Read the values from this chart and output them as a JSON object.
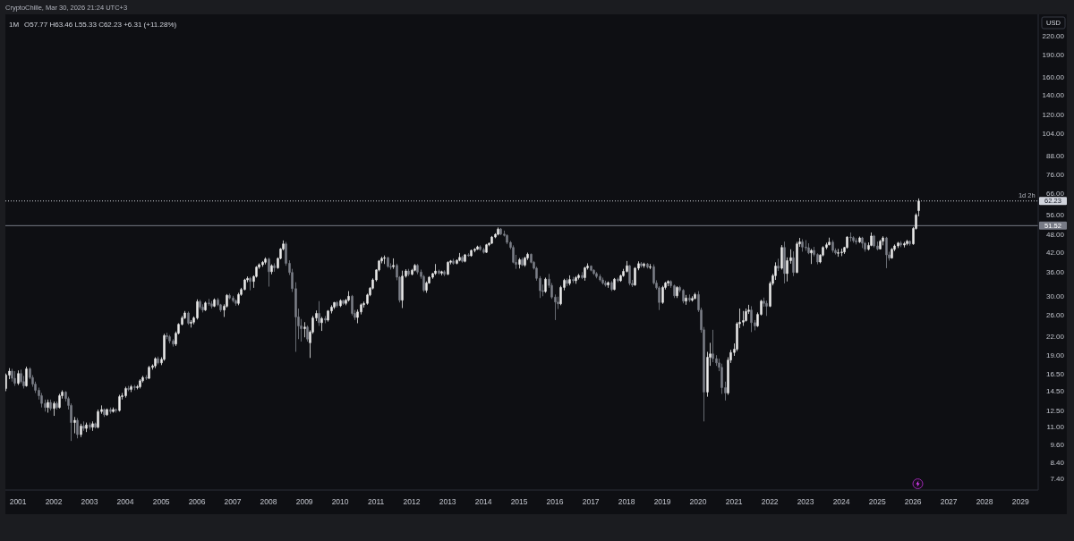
{
  "chart_data": {
    "type": "candlestick",
    "title": "1M",
    "ylabel": "USD",
    "log": true,
    "annotations": [
      "CryptoChille, Mar 30, 2026 21:24 UTC+3",
      "O57.77 H63.46 L55.33 C62.23 +6.31 (+11.28%)",
      {
        "text": "1d 2h",
        "x": "2029-06",
        "y": 62.23
      }
    ],
    "xlim": [
      "2000-08-25",
      "2029-07"
    ],
    "ylim": [
      6.8,
      260
    ],
    "xticks": [
      "2001",
      "2002",
      "2003",
      "2004",
      "2005",
      "2006",
      "2007",
      "2008",
      "2009",
      "2010",
      "2011",
      "2012",
      "2013",
      "2014",
      "2015",
      "2016",
      "2017",
      "2018",
      "2019",
      "2020",
      "2021",
      "2022",
      "2023",
      "2024",
      "2025",
      "2026",
      "2027",
      "2028",
      "2029"
    ],
    "yticks": [
      {
        "value": 220,
        "label": "220.00"
      },
      {
        "value": 190,
        "label": "190.00"
      },
      {
        "value": 160,
        "label": "160.00"
      },
      {
        "value": 140,
        "label": "140.00"
      },
      {
        "value": 120,
        "label": "120.00"
      },
      {
        "value": 104,
        "label": "104.00"
      },
      {
        "value": 88,
        "label": "88.00"
      },
      {
        "value": 76,
        "label": "76.00"
      },
      {
        "value": 66,
        "label": "66.00"
      },
      {
        "value": 56,
        "label": "56.00"
      },
      {
        "value": 48,
        "label": "48.00"
      },
      {
        "value": 42,
        "label": "42.00"
      },
      {
        "value": 36,
        "label": "36.00"
      },
      {
        "value": 30,
        "label": "30.00"
      },
      {
        "value": 26,
        "label": "26.00"
      },
      {
        "value": 22,
        "label": "22.00"
      },
      {
        "value": 19,
        "label": "19.00"
      },
      {
        "value": 16.5,
        "label": "16.50"
      },
      {
        "value": 14.5,
        "label": "14.50"
      },
      {
        "value": 12.5,
        "label": "12.50"
      },
      {
        "value": 11,
        "label": "11.00"
      },
      {
        "value": 9.6,
        "label": "9.60"
      },
      {
        "value": 8.4,
        "label": "8.40"
      },
      {
        "value": 7.4,
        "label": "7.40"
      }
    ],
    "ref_lines": [
      {
        "axis": "y",
        "value": 62.23,
        "label": "62.23",
        "color": "#d1d4dc",
        "line_style": "dotted"
      },
      {
        "axis": "y",
        "value": 51.52,
        "label": "51.52",
        "color": "#787b86",
        "line_style": "solid"
      }
    ],
    "x": [
      "2000-09",
      "2000-10",
      "2000-11",
      "2000-12",
      "2001-01",
      "2001-02",
      "2001-03",
      "2001-04",
      "2001-05",
      "2001-06",
      "2001-07",
      "2001-08",
      "2001-09",
      "2001-10",
      "2001-11",
      "2001-12",
      "2002-01",
      "2002-02",
      "2002-03",
      "2002-04",
      "2002-05",
      "2002-06",
      "2002-07",
      "2002-08",
      "2002-09",
      "2002-10",
      "2002-11",
      "2002-12",
      "2003-01",
      "2003-02",
      "2003-03",
      "2003-04",
      "2003-05",
      "2003-06",
      "2003-07",
      "2003-08",
      "2003-09",
      "2003-10",
      "2003-11",
      "2003-12",
      "2004-01",
      "2004-02",
      "2004-03",
      "2004-04",
      "2004-05",
      "2004-06",
      "2004-07",
      "2004-08",
      "2004-09",
      "2004-10",
      "2004-11",
      "2004-12",
      "2005-01",
      "2005-02",
      "2005-03",
      "2005-04",
      "2005-05",
      "2005-06",
      "2005-07",
      "2005-08",
      "2005-09",
      "2005-10",
      "2005-11",
      "2005-12",
      "2006-01",
      "2006-02",
      "2006-03",
      "2006-04",
      "2006-05",
      "2006-06",
      "2006-07",
      "2006-08",
      "2006-09",
      "2006-10",
      "2006-11",
      "2006-12",
      "2007-01",
      "2007-02",
      "2007-03",
      "2007-04",
      "2007-05",
      "2007-06",
      "2007-07",
      "2007-08",
      "2007-09",
      "2007-10",
      "2007-11",
      "2007-12",
      "2008-01",
      "2008-02",
      "2008-03",
      "2008-04",
      "2008-05",
      "2008-06",
      "2008-07",
      "2008-08",
      "2008-09",
      "2008-10",
      "2008-11",
      "2008-12",
      "2009-01",
      "2009-02",
      "2009-03",
      "2009-04",
      "2009-05",
      "2009-06",
      "2009-07",
      "2009-08",
      "2009-09",
      "2009-10",
      "2009-11",
      "2009-12",
      "2010-01",
      "2010-02",
      "2010-03",
      "2010-04",
      "2010-05",
      "2010-06",
      "2010-07",
      "2010-08",
      "2010-09",
      "2010-10",
      "2010-11",
      "2010-12",
      "2011-01",
      "2011-02",
      "2011-03",
      "2011-04",
      "2011-05",
      "2011-06",
      "2011-07",
      "2011-08",
      "2011-09",
      "2011-10",
      "2011-11",
      "2011-12",
      "2012-01",
      "2012-02",
      "2012-03",
      "2012-04",
      "2012-05",
      "2012-06",
      "2012-07",
      "2012-08",
      "2012-09",
      "2012-10",
      "2012-11",
      "2012-12",
      "2013-01",
      "2013-02",
      "2013-03",
      "2013-04",
      "2013-05",
      "2013-06",
      "2013-07",
      "2013-08",
      "2013-09",
      "2013-10",
      "2013-11",
      "2013-12",
      "2014-01",
      "2014-02",
      "2014-03",
      "2014-04",
      "2014-05",
      "2014-06",
      "2014-07",
      "2014-08",
      "2014-09",
      "2014-10",
      "2014-11",
      "2014-12",
      "2015-01",
      "2015-02",
      "2015-03",
      "2015-04",
      "2015-05",
      "2015-06",
      "2015-07",
      "2015-08",
      "2015-09",
      "2015-10",
      "2015-11",
      "2015-12",
      "2016-01",
      "2016-02",
      "2016-03",
      "2016-04",
      "2016-05",
      "2016-06",
      "2016-07",
      "2016-08",
      "2016-09",
      "2016-10",
      "2016-11",
      "2016-12",
      "2017-01",
      "2017-02",
      "2017-03",
      "2017-04",
      "2017-05",
      "2017-06",
      "2017-07",
      "2017-08",
      "2017-09",
      "2017-10",
      "2017-11",
      "2017-12",
      "2018-01",
      "2018-02",
      "2018-03",
      "2018-04",
      "2018-05",
      "2018-06",
      "2018-07",
      "2018-08",
      "2018-09",
      "2018-10",
      "2018-11",
      "2018-12",
      "2019-01",
      "2019-02",
      "2019-03",
      "2019-04",
      "2019-05",
      "2019-06",
      "2019-07",
      "2019-08",
      "2019-09",
      "2019-10",
      "2019-11",
      "2019-12",
      "2020-01",
      "2020-02",
      "2020-03",
      "2020-04",
      "2020-05",
      "2020-06",
      "2020-07",
      "2020-08",
      "2020-09",
      "2020-10",
      "2020-11",
      "2020-12",
      "2021-01",
      "2021-02",
      "2021-03",
      "2021-04",
      "2021-05",
      "2021-06",
      "2021-07",
      "2021-08",
      "2021-09",
      "2021-10",
      "2021-11",
      "2021-12",
      "2022-01",
      "2022-02",
      "2022-03",
      "2022-04",
      "2022-05",
      "2022-06",
      "2022-07",
      "2022-08",
      "2022-09",
      "2022-10",
      "2022-11",
      "2022-12",
      "2023-01",
      "2023-02",
      "2023-03",
      "2023-04",
      "2023-05",
      "2023-06",
      "2023-07",
      "2023-08",
      "2023-09",
      "2023-10",
      "2023-11",
      "2023-12",
      "2024-01",
      "2024-02",
      "2024-03",
      "2024-04",
      "2024-05",
      "2024-06",
      "2024-07",
      "2024-08",
      "2024-09",
      "2024-10",
      "2024-11",
      "2024-12",
      "2025-01",
      "2025-02",
      "2025-03",
      "2025-04",
      "2025-05",
      "2025-06",
      "2025-07",
      "2025-08",
      "2025-09",
      "2025-10",
      "2025-11",
      "2025-12",
      "2026-01",
      "2026-02",
      "2026-03"
    ],
    "ohlc": [
      [
        14.8,
        16.6,
        14.5,
        16.4
      ],
      [
        16.4,
        17.3,
        15.9,
        16.9
      ],
      [
        16.9,
        17.2,
        15.6,
        16.0
      ],
      [
        16.0,
        16.9,
        15.1,
        15.4
      ],
      [
        15.4,
        17.0,
        15.2,
        16.6
      ],
      [
        16.6,
        17.1,
        15.4,
        15.6
      ],
      [
        15.6,
        16.3,
        14.8,
        15.1
      ],
      [
        15.1,
        17.5,
        15.0,
        17.2
      ],
      [
        17.2,
        17.4,
        15.9,
        16.1
      ],
      [
        16.1,
        16.4,
        15.0,
        15.3
      ],
      [
        15.3,
        15.6,
        14.3,
        14.6
      ],
      [
        14.6,
        14.9,
        13.6,
        14.0
      ],
      [
        14.0,
        14.3,
        12.8,
        13.2
      ],
      [
        13.2,
        13.6,
        12.4,
        12.8
      ],
      [
        12.8,
        13.6,
        12.3,
        13.3
      ],
      [
        13.3,
        13.6,
        12.5,
        12.7
      ],
      [
        12.7,
        13.4,
        12.0,
        13.2
      ],
      [
        13.2,
        13.4,
        12.6,
        12.8
      ],
      [
        12.8,
        14.2,
        12.7,
        14.0
      ],
      [
        14.0,
        14.6,
        13.7,
        14.4
      ],
      [
        14.4,
        14.5,
        13.4,
        13.7
      ],
      [
        13.7,
        13.9,
        12.6,
        13.0
      ],
      [
        13.0,
        13.2,
        9.9,
        11.4
      ],
      [
        11.4,
        11.9,
        10.5,
        11.6
      ],
      [
        11.6,
        11.8,
        10.1,
        10.4
      ],
      [
        10.4,
        11.3,
        10.2,
        11.1
      ],
      [
        11.1,
        11.5,
        10.7,
        10.9
      ],
      [
        10.9,
        11.4,
        10.6,
        11.2
      ],
      [
        11.2,
        11.4,
        10.8,
        11.0
      ],
      [
        11.0,
        11.5,
        10.7,
        11.3
      ],
      [
        11.3,
        11.4,
        10.9,
        11.0
      ],
      [
        11.0,
        12.6,
        10.9,
        12.4
      ],
      [
        12.4,
        13.0,
        12.2,
        12.6
      ],
      [
        12.6,
        12.7,
        11.9,
        12.1
      ],
      [
        12.1,
        12.7,
        12.0,
        12.6
      ],
      [
        12.6,
        12.8,
        12.2,
        12.4
      ],
      [
        12.4,
        12.8,
        12.3,
        12.6
      ],
      [
        12.6,
        12.7,
        12.3,
        12.5
      ],
      [
        12.5,
        14.1,
        12.4,
        13.9
      ],
      [
        13.9,
        14.3,
        13.6,
        14.0
      ],
      [
        14.0,
        15.0,
        13.8,
        14.8
      ],
      [
        14.8,
        15.1,
        14.5,
        14.7
      ],
      [
        14.7,
        15.2,
        14.4,
        15.0
      ],
      [
        15.0,
        15.2,
        14.6,
        14.9
      ],
      [
        14.9,
        15.2,
        14.7,
        15.0
      ],
      [
        15.0,
        15.9,
        14.8,
        15.7
      ],
      [
        15.7,
        16.3,
        15.5,
        16.1
      ],
      [
        16.1,
        16.4,
        15.8,
        16.0
      ],
      [
        16.0,
        17.6,
        15.9,
        17.4
      ],
      [
        17.4,
        17.8,
        17.1,
        17.6
      ],
      [
        17.6,
        18.8,
        17.3,
        18.6
      ],
      [
        18.6,
        18.9,
        17.8,
        18.0
      ],
      [
        18.0,
        18.8,
        17.7,
        18.5
      ],
      [
        18.5,
        22.5,
        18.3,
        22.2
      ],
      [
        22.2,
        22.7,
        21.6,
        22.0
      ],
      [
        22.0,
        22.3,
        20.9,
        21.3
      ],
      [
        21.3,
        21.6,
        20.4,
        20.8
      ],
      [
        20.8,
        22.9,
        20.5,
        22.6
      ],
      [
        22.6,
        24.4,
        22.4,
        24.2
      ],
      [
        24.2,
        25.8,
        24.0,
        25.4
      ],
      [
        25.4,
        26.8,
        25.2,
        26.4
      ],
      [
        26.4,
        26.7,
        24.1,
        24.4
      ],
      [
        24.4,
        25.0,
        23.6,
        24.6
      ],
      [
        24.6,
        25.7,
        24.2,
        25.4
      ],
      [
        25.4,
        29.3,
        25.1,
        28.8
      ],
      [
        28.8,
        29.2,
        27.1,
        27.6
      ],
      [
        27.6,
        28.2,
        26.5,
        27.0
      ],
      [
        27.0,
        28.8,
        26.8,
        28.5
      ],
      [
        28.5,
        29.4,
        27.9,
        28.3
      ],
      [
        28.3,
        28.9,
        27.3,
        27.8
      ],
      [
        27.8,
        29.5,
        27.6,
        29.2
      ],
      [
        29.2,
        29.6,
        27.8,
        28.1
      ],
      [
        28.1,
        28.3,
        26.6,
        27.0
      ],
      [
        27.0,
        28.2,
        25.6,
        27.8
      ],
      [
        27.8,
        30.5,
        27.5,
        30.2
      ],
      [
        30.2,
        30.6,
        29.3,
        29.6
      ],
      [
        29.6,
        30.1,
        28.6,
        29.0
      ],
      [
        29.0,
        29.3,
        27.9,
        28.4
      ],
      [
        28.4,
        30.8,
        28.0,
        30.4
      ],
      [
        30.4,
        32.0,
        30.1,
        31.6
      ],
      [
        31.6,
        34.3,
        31.4,
        34.0
      ],
      [
        34.0,
        34.9,
        33.4,
        34.4
      ],
      [
        34.4,
        34.8,
        31.4,
        33.6
      ],
      [
        33.6,
        35.2,
        32.0,
        34.9
      ],
      [
        34.9,
        37.8,
        34.6,
        37.5
      ],
      [
        37.5,
        38.6,
        37.0,
        38.2
      ],
      [
        38.2,
        39.3,
        37.6,
        38.9
      ],
      [
        38.9,
        40.4,
        38.3,
        39.9
      ],
      [
        39.9,
        40.3,
        32.3,
        36.2
      ],
      [
        36.2,
        38.3,
        35.5,
        37.9
      ],
      [
        37.9,
        38.6,
        36.2,
        37.3
      ],
      [
        37.3,
        40.4,
        37.0,
        40.1
      ],
      [
        40.1,
        43.4,
        39.8,
        43.1
      ],
      [
        43.1,
        46.0,
        42.6,
        44.8
      ],
      [
        44.8,
        45.5,
        37.9,
        38.6
      ],
      [
        38.6,
        39.5,
        35.3,
        36.0
      ],
      [
        36.0,
        37.0,
        31.0,
        31.8
      ],
      [
        31.8,
        33.4,
        19.6,
        25.6
      ],
      [
        25.6,
        27.3,
        21.6,
        23.9
      ],
      [
        23.9,
        25.2,
        21.2,
        23.4
      ],
      [
        23.4,
        24.6,
        21.9,
        23.7
      ],
      [
        23.7,
        24.0,
        21.2,
        21.6
      ],
      [
        21.0,
        23.1,
        18.7,
        22.8
      ],
      [
        22.8,
        25.8,
        22.5,
        25.4
      ],
      [
        25.4,
        26.9,
        24.8,
        26.3
      ],
      [
        26.3,
        28.9,
        23.9,
        24.5
      ],
      [
        24.5,
        25.6,
        23.0,
        25.3
      ],
      [
        25.3,
        25.8,
        24.4,
        25.0
      ],
      [
        25.0,
        27.0,
        24.7,
        26.8
      ],
      [
        26.8,
        28.0,
        26.3,
        27.6
      ],
      [
        27.6,
        28.7,
        27.2,
        28.6
      ],
      [
        28.6,
        28.9,
        27.5,
        27.9
      ],
      [
        27.9,
        29.3,
        27.6,
        29.0
      ],
      [
        29.0,
        29.2,
        28.1,
        28.4
      ],
      [
        28.4,
        29.4,
        28.0,
        29.1
      ],
      [
        29.1,
        31.2,
        28.8,
        30.0
      ],
      [
        30.0,
        30.3,
        25.9,
        26.3
      ],
      [
        26.3,
        27.0,
        25.0,
        25.5
      ],
      [
        25.5,
        27.1,
        24.4,
        26.6
      ],
      [
        26.6,
        28.4,
        26.1,
        28.1
      ],
      [
        28.1,
        28.8,
        27.5,
        28.4
      ],
      [
        28.4,
        30.6,
        28.1,
        30.3
      ],
      [
        30.3,
        32.2,
        30.0,
        31.9
      ],
      [
        31.9,
        34.4,
        31.6,
        34.0
      ],
      [
        34.0,
        36.9,
        33.6,
        36.7
      ],
      [
        36.7,
        39.6,
        36.3,
        39.3
      ],
      [
        39.3,
        40.6,
        38.6,
        40.1
      ],
      [
        40.1,
        41.0,
        38.4,
        40.3
      ],
      [
        40.3,
        40.6,
        37.3,
        37.7
      ],
      [
        37.7,
        38.6,
        36.8,
        37.6
      ],
      [
        37.6,
        40.1,
        37.0,
        38.0
      ],
      [
        38.0,
        38.5,
        33.9,
        34.7
      ],
      [
        34.7,
        35.0,
        28.6,
        29.1
      ],
      [
        29.1,
        36.5,
        27.4,
        35.0
      ],
      [
        35.0,
        36.9,
        34.6,
        36.4
      ],
      [
        36.4,
        37.0,
        35.0,
        35.5
      ],
      [
        35.5,
        37.0,
        35.2,
        36.6
      ],
      [
        36.6,
        38.4,
        36.3,
        38.0
      ],
      [
        38.0,
        38.4,
        35.5,
        36.1
      ],
      [
        36.1,
        36.8,
        34.3,
        34.9
      ],
      [
        34.9,
        35.3,
        31.0,
        31.4
      ],
      [
        31.4,
        33.6,
        30.8,
        33.2
      ],
      [
        33.2,
        35.0,
        33.0,
        34.7
      ],
      [
        34.7,
        35.9,
        34.3,
        35.7
      ],
      [
        35.7,
        38.4,
        35.3,
        36.4
      ],
      [
        36.4,
        36.8,
        35.4,
        35.8
      ],
      [
        35.8,
        36.5,
        35.2,
        36.2
      ],
      [
        36.2,
        36.6,
        35.0,
        35.5
      ],
      [
        35.5,
        39.2,
        35.3,
        38.9
      ],
      [
        38.9,
        39.6,
        38.3,
        39.3
      ],
      [
        39.3,
        40.0,
        38.2,
        38.6
      ],
      [
        38.6,
        39.8,
        38.3,
        39.5
      ],
      [
        39.5,
        41.8,
        39.2,
        40.4
      ],
      [
        40.4,
        40.9,
        38.8,
        39.2
      ],
      [
        39.2,
        41.5,
        38.9,
        41.2
      ],
      [
        41.2,
        41.7,
        40.6,
        40.9
      ],
      [
        40.9,
        42.9,
        40.6,
        42.6
      ],
      [
        42.6,
        43.4,
        42.0,
        43.0
      ],
      [
        43.0,
        44.2,
        42.8,
        43.8
      ],
      [
        43.8,
        44.3,
        42.5,
        42.9
      ],
      [
        42.9,
        43.5,
        41.6,
        42.0
      ],
      [
        42.0,
        44.8,
        41.8,
        44.5
      ],
      [
        44.5,
        45.3,
        44.0,
        45.0
      ],
      [
        45.0,
        47.6,
        44.7,
        47.2
      ],
      [
        47.2,
        48.6,
        46.8,
        48.2
      ],
      [
        48.2,
        50.8,
        47.8,
        50.2
      ],
      [
        50.2,
        50.6,
        47.9,
        48.3
      ],
      [
        48.3,
        49.6,
        47.4,
        47.8
      ],
      [
        47.8,
        48.2,
        44.7,
        45.3
      ],
      [
        45.3,
        45.8,
        43.0,
        43.6
      ],
      [
        43.6,
        44.3,
        38.6,
        38.9
      ],
      [
        38.9,
        41.2,
        37.0,
        38.3
      ],
      [
        38.3,
        40.2,
        37.1,
        39.7
      ],
      [
        39.7,
        40.3,
        37.8,
        38.1
      ],
      [
        38.1,
        40.6,
        37.6,
        40.2
      ],
      [
        40.2,
        41.9,
        39.6,
        41.4
      ],
      [
        41.4,
        41.6,
        38.6,
        38.9
      ],
      [
        38.9,
        39.3,
        36.8,
        37.2
      ],
      [
        37.2,
        37.6,
        33.8,
        34.4
      ],
      [
        34.4,
        35.0,
        29.6,
        31.3
      ],
      [
        31.3,
        32.8,
        30.0,
        31.1
      ],
      [
        31.1,
        34.6,
        30.8,
        34.2
      ],
      [
        34.2,
        35.6,
        32.0,
        32.6
      ],
      [
        32.6,
        33.2,
        29.4,
        29.8
      ],
      [
        29.8,
        30.4,
        25.0,
        28.7
      ],
      [
        28.7,
        29.9,
        27.2,
        28.3
      ],
      [
        28.3,
        32.5,
        28.0,
        32.1
      ],
      [
        32.1,
        34.3,
        31.4,
        33.9
      ],
      [
        33.9,
        34.4,
        32.4,
        33.1
      ],
      [
        33.1,
        35.2,
        32.6,
        34.1
      ],
      [
        34.1,
        34.8,
        33.2,
        33.8
      ],
      [
        33.8,
        35.0,
        33.0,
        34.6
      ],
      [
        34.6,
        35.6,
        34.1,
        35.2
      ],
      [
        35.2,
        36.1,
        34.2,
        34.6
      ],
      [
        34.6,
        37.6,
        33.8,
        37.3
      ],
      [
        37.3,
        38.6,
        36.8,
        37.8
      ],
      [
        37.8,
        38.0,
        36.3,
        36.6
      ],
      [
        36.6,
        36.9,
        35.3,
        35.7
      ],
      [
        35.7,
        36.1,
        34.4,
        34.9
      ],
      [
        34.9,
        35.5,
        33.6,
        34.0
      ],
      [
        34.0,
        34.6,
        32.8,
        33.2
      ],
      [
        33.2,
        33.8,
        32.3,
        32.7
      ],
      [
        32.7,
        33.6,
        32.0,
        33.3
      ],
      [
        33.3,
        33.7,
        31.2,
        31.6
      ],
      [
        31.6,
        34.5,
        31.4,
        34.2
      ],
      [
        34.2,
        34.6,
        33.4,
        33.8
      ],
      [
        33.8,
        35.4,
        33.5,
        35.1
      ],
      [
        35.1,
        37.0,
        34.8,
        36.3
      ],
      [
        36.3,
        39.3,
        36.0,
        37.9
      ],
      [
        37.9,
        38.1,
        32.6,
        33.1
      ],
      [
        33.1,
        34.0,
        32.2,
        32.7
      ],
      [
        32.7,
        37.5,
        32.5,
        37.2
      ],
      [
        37.2,
        39.2,
        36.6,
        38.5
      ],
      [
        38.5,
        39.0,
        37.4,
        37.9
      ],
      [
        37.9,
        38.8,
        37.3,
        38.4
      ],
      [
        38.4,
        38.7,
        37.1,
        37.5
      ],
      [
        37.5,
        38.4,
        36.9,
        37.6
      ],
      [
        37.6,
        38.3,
        32.8,
        33.2
      ],
      [
        33.2,
        33.9,
        31.6,
        32.0
      ],
      [
        32.0,
        32.4,
        27.0,
        28.6
      ],
      [
        28.6,
        32.5,
        28.3,
        32.1
      ],
      [
        32.1,
        33.5,
        31.6,
        33.2
      ],
      [
        33.2,
        33.9,
        32.4,
        33.6
      ],
      [
        33.6,
        33.9,
        32.0,
        32.5
      ],
      [
        32.5,
        32.8,
        29.6,
        30.1
      ],
      [
        30.1,
        32.4,
        29.6,
        32.1
      ],
      [
        32.1,
        32.5,
        30.9,
        31.4
      ],
      [
        31.4,
        31.7,
        28.4,
        28.9
      ],
      [
        28.9,
        30.3,
        28.1,
        29.6
      ],
      [
        29.6,
        30.4,
        28.7,
        29.1
      ],
      [
        29.1,
        30.0,
        28.8,
        29.5
      ],
      [
        29.5,
        30.8,
        29.3,
        30.4
      ],
      [
        30.4,
        31.2,
        26.6,
        27.0
      ],
      [
        27.0,
        27.5,
        22.7,
        23.2
      ],
      [
        23.2,
        23.7,
        11.5,
        14.4
      ],
      [
        14.4,
        19.6,
        13.9,
        18.8
      ],
      [
        18.8,
        21.0,
        17.6,
        19.3
      ],
      [
        19.3,
        23.2,
        18.1,
        18.6
      ],
      [
        18.6,
        19.1,
        17.6,
        18.0
      ],
      [
        18.0,
        18.6,
        16.9,
        17.4
      ],
      [
        17.4,
        17.9,
        14.2,
        14.9
      ],
      [
        14.9,
        15.6,
        13.5,
        14.3
      ],
      [
        14.3,
        18.8,
        14.1,
        18.4
      ],
      [
        18.4,
        19.9,
        18.0,
        19.5
      ],
      [
        19.5,
        20.9,
        19.0,
        20.0
      ],
      [
        20.0,
        24.6,
        19.7,
        24.3
      ],
      [
        24.3,
        27.3,
        23.5,
        24.6
      ],
      [
        24.6,
        26.8,
        23.9,
        24.9
      ],
      [
        24.9,
        27.3,
        24.7,
        26.7
      ],
      [
        26.7,
        28.1,
        26.2,
        27.0
      ],
      [
        27.0,
        27.8,
        22.8,
        24.5
      ],
      [
        24.5,
        25.0,
        23.1,
        23.9
      ],
      [
        23.9,
        26.5,
        23.7,
        26.1
      ],
      [
        26.1,
        29.2,
        25.9,
        28.9
      ],
      [
        28.9,
        29.7,
        27.7,
        28.4
      ],
      [
        28.4,
        29.0,
        25.8,
        27.8
      ],
      [
        27.8,
        33.6,
        27.6,
        33.1
      ],
      [
        33.1,
        35.6,
        32.6,
        35.1
      ],
      [
        35.1,
        38.9,
        34.0,
        37.8
      ],
      [
        37.8,
        40.0,
        36.4,
        37.2
      ],
      [
        37.2,
        44.4,
        36.8,
        43.6
      ],
      [
        43.6,
        45.6,
        33.1,
        35.7
      ],
      [
        35.7,
        40.4,
        33.6,
        39.4
      ],
      [
        39.4,
        43.0,
        38.5,
        40.3
      ],
      [
        40.3,
        42.3,
        35.0,
        36.0
      ],
      [
        36.0,
        45.5,
        35.8,
        44.8
      ],
      [
        44.8,
        46.9,
        43.8,
        45.5
      ],
      [
        45.5,
        46.4,
        42.2,
        43.7
      ],
      [
        43.7,
        46.1,
        42.5,
        43.5
      ],
      [
        43.5,
        45.0,
        41.4,
        41.8
      ],
      [
        41.8,
        43.1,
        38.4,
        42.6
      ],
      [
        42.6,
        43.8,
        40.7,
        41.3
      ],
      [
        41.3,
        41.7,
        38.3,
        39.0
      ],
      [
        39.0,
        41.4,
        38.6,
        41.1
      ],
      [
        41.1,
        44.0,
        40.7,
        43.6
      ],
      [
        43.6,
        45.2,
        43.0,
        44.5
      ],
      [
        44.5,
        47.0,
        44.3,
        45.4
      ],
      [
        45.4,
        46.1,
        41.9,
        42.6
      ],
      [
        42.6,
        43.3,
        41.3,
        41.8
      ],
      [
        41.8,
        43.1,
        40.6,
        41.9
      ],
      [
        41.9,
        43.2,
        40.8,
        42.1
      ],
      [
        42.1,
        43.8,
        41.5,
        43.6
      ],
      [
        43.6,
        47.5,
        43.2,
        47.2
      ],
      [
        47.2,
        48.9,
        45.6,
        47.0
      ],
      [
        47.0,
        47.5,
        45.2,
        45.9
      ],
      [
        45.9,
        46.8,
        44.6,
        45.5
      ],
      [
        45.5,
        47.4,
        45.1,
        46.9
      ],
      [
        46.9,
        47.3,
        43.4,
        45.0
      ],
      [
        45.0,
        45.5,
        42.2,
        43.0
      ],
      [
        43.0,
        45.3,
        42.6,
        44.3
      ],
      [
        44.3,
        48.9,
        44.0,
        47.6
      ],
      [
        47.6,
        48.0,
        43.6,
        44.1
      ],
      [
        44.1,
        45.6,
        42.6,
        43.1
      ],
      [
        43.1,
        46.2,
        42.9,
        45.7
      ],
      [
        45.7,
        47.5,
        44.3,
        46.9
      ],
      [
        46.9,
        47.3,
        37.2,
        41.2
      ],
      [
        41.2,
        42.2,
        39.4,
        40.2
      ],
      [
        40.2,
        43.4,
        40.0,
        43.0
      ],
      [
        43.0,
        44.6,
        42.4,
        44.1
      ],
      [
        44.1,
        45.5,
        43.4,
        45.1
      ],
      [
        45.1,
        45.8,
        43.7,
        44.4
      ],
      [
        44.4,
        45.5,
        43.6,
        44.9
      ],
      [
        44.9,
        46.2,
        44.3,
        45.7
      ],
      [
        45.7,
        46.0,
        44.2,
        44.8
      ],
      [
        44.8,
        51.0,
        44.5,
        50.4
      ],
      [
        50.4,
        56.6,
        50.0,
        55.9
      ],
      [
        57.77,
        63.46,
        55.33,
        62.23
      ]
    ],
    "colors": [
      "#eeeeee",
      "#eeeeee",
      "#7e818a",
      "#7e818a",
      "#eeeeee",
      "#7e818a",
      "#7e818a",
      "#eeeeee",
      "#7e818a",
      "#7e818a",
      "#7e818a",
      "#7e818a",
      "#7e818a",
      "#7e818a",
      "#eeeeee",
      "#7e818a",
      "#eeeeee",
      "#7e818a",
      "#eeeeee",
      "#eeeeee",
      "#7e818a",
      "#7e818a",
      "#7e818a",
      "#eeeeee",
      "#7e818a",
      "#eeeeee",
      "#7e818a",
      "#eeeeee",
      "#7e818a",
      "#eeeeee",
      "#7e818a",
      "#eeeeee",
      "#eeeeee",
      "#7e818a",
      "#eeeeee",
      "#7e818a",
      "#eeeeee",
      "#7e818a",
      "#eeeeee",
      "#eeeeee",
      "#eeeeee",
      "#7e818a",
      "#eeeeee",
      "#7e818a",
      "#eeeeee",
      "#eeeeee",
      "#eeeeee",
      "#7e818a",
      "#eeeeee",
      "#eeeeee",
      "#eeeeee",
      "#7e818a",
      "#eeeeee",
      "#eeeeee",
      "#7e818a",
      "#7e818a",
      "#7e818a",
      "#eeeeee",
      "#eeeeee",
      "#eeeeee",
      "#eeeeee",
      "#7e818a",
      "#eeeeee",
      "#eeeeee",
      "#eeeeee",
      "#7e818a",
      "#7e818a",
      "#eeeeee",
      "#7e818a",
      "#7e818a",
      "#eeeeee",
      "#7e818a",
      "#7e818a",
      "#eeeeee",
      "#eeeeee",
      "#7e818a",
      "#7e818a",
      "#7e818a",
      "#eeeeee",
      "#eeeeee",
      "#eeeeee",
      "#eeeeee",
      "#7e818a",
      "#eeeeee",
      "#eeeeee",
      "#eeeeee",
      "#eeeeee",
      "#eeeeee",
      "#7e818a",
      "#eeeeee",
      "#7e818a",
      "#eeeeee",
      "#eeeeee",
      "#eeeeee",
      "#7e818a",
      "#7e818a",
      "#7e818a",
      "#7e818a",
      "#7e818a",
      "#7e818a",
      "#eeeeee",
      "#7e818a",
      "#eeeeee",
      "#eeeeee",
      "#eeeeee",
      "#7e818a",
      "#eeeeee",
      "#7e818a",
      "#eeeeee",
      "#eeeeee",
      "#eeeeee",
      "#7e818a",
      "#eeeeee",
      "#7e818a",
      "#eeeeee",
      "#eeeeee",
      "#7e818a",
      "#7e818a",
      "#eeeeee",
      "#eeeeee",
      "#eeeeee",
      "#eeeeee",
      "#eeeeee",
      "#eeeeee",
      "#eeeeee",
      "#eeeeee",
      "#eeeeee",
      "#eeeeee",
      "#7e818a",
      "#7e818a",
      "#eeeeee",
      "#7e818a",
      "#7e818a",
      "#eeeeee",
      "#eeeeee",
      "#7e818a",
      "#eeeeee",
      "#eeeeee",
      "#7e818a",
      "#7e818a",
      "#7e818a",
      "#eeeeee",
      "#eeeeee",
      "#eeeeee",
      "#eeeeee",
      "#7e818a",
      "#eeeeee",
      "#7e818a",
      "#eeeeee",
      "#eeeeee",
      "#7e818a",
      "#eeeeee",
      "#eeeeee",
      "#7e818a",
      "#eeeeee",
      "#7e818a",
      "#eeeeee",
      "#eeeeee",
      "#eeeeee",
      "#7e818a",
      "#7e818a",
      "#eeeeee",
      "#eeeeee",
      "#eeeeee",
      "#eeeeee",
      "#eeeeee",
      "#7e818a",
      "#7e818a",
      "#7e818a",
      "#7e818a",
      "#7e818a",
      "#7e818a",
      "#eeeeee",
      "#7e818a",
      "#eeeeee",
      "#eeeeee",
      "#7e818a",
      "#7e818a",
      "#7e818a",
      "#7e818a",
      "#7e818a",
      "#eeeeee",
      "#7e818a",
      "#7e818a",
      "#7e818a",
      "#7e818a",
      "#eeeeee",
      "#eeeeee",
      "#7e818a",
      "#eeeeee",
      "#7e818a",
      "#eeeeee",
      "#eeeeee",
      "#7e818a",
      "#eeeeee",
      "#eeeeee",
      "#7e818a",
      "#7e818a",
      "#7e818a",
      "#7e818a",
      "#7e818a",
      "#7e818a",
      "#eeeeee",
      "#7e818a",
      "#eeeeee",
      "#7e818a",
      "#eeeeee",
      "#eeeeee",
      "#eeeeee",
      "#7e818a",
      "#7e818a",
      "#eeeeee",
      "#eeeeee",
      "#7e818a",
      "#eeeeee",
      "#7e818a",
      "#eeeeee",
      "#7e818a",
      "#7e818a",
      "#7e818a",
      "#eeeeee",
      "#eeeeee",
      "#eeeeee",
      "#7e818a",
      "#7e818a",
      "#eeeeee",
      "#7e818a",
      "#7e818a",
      "#eeeeee",
      "#7e818a",
      "#eeeeee",
      "#eeeeee",
      "#7e818a",
      "#7e818a",
      "#7e818a",
      "#eeeeee",
      "#eeeeee",
      "#7e818a",
      "#7e818a",
      "#7e818a",
      "#7e818a",
      "#7e818a",
      "#eeeeee",
      "#eeeeee",
      "#eeeeee",
      "#eeeeee",
      "#eeeeee",
      "#eeeeee",
      "#eeeeee",
      "#eeeeee",
      "#7e818a",
      "#7e818a",
      "#eeeeee",
      "#eeeeee",
      "#7e818a",
      "#7e818a",
      "#eeeeee",
      "#eeeeee",
      "#eeeeee",
      "#7e818a",
      "#eeeeee",
      "#7e818a",
      "#eeeeee",
      "#eeeeee",
      "#7e818a",
      "#eeeeee",
      "#eeeeee",
      "#7e818a",
      "#7e818a",
      "#7e818a",
      "#eeeeee",
      "#7e818a",
      "#7e818a",
      "#eeeeee",
      "#eeeeee",
      "#eeeeee",
      "#eeeeee",
      "#7e818a",
      "#7e818a",
      "#eeeeee",
      "#eeeeee",
      "#eeeeee",
      "#eeeeee",
      "#7e818a",
      "#7e818a",
      "#7e818a",
      "#eeeeee",
      "#7e818a",
      "#7e818a",
      "#eeeeee",
      "#eeeeee",
      "#7e818a",
      "#7e818a",
      "#eeeeee",
      "#eeeeee",
      "#7e818a",
      "#7e818a",
      "#eeeeee",
      "#eeeeee",
      "#eeeeee",
      "#7e818a",
      "#eeeeee",
      "#eeeeee",
      "#7e818a",
      "#eeeeee",
      "#eeeeee",
      "#eeeeee"
    ]
  }
}
